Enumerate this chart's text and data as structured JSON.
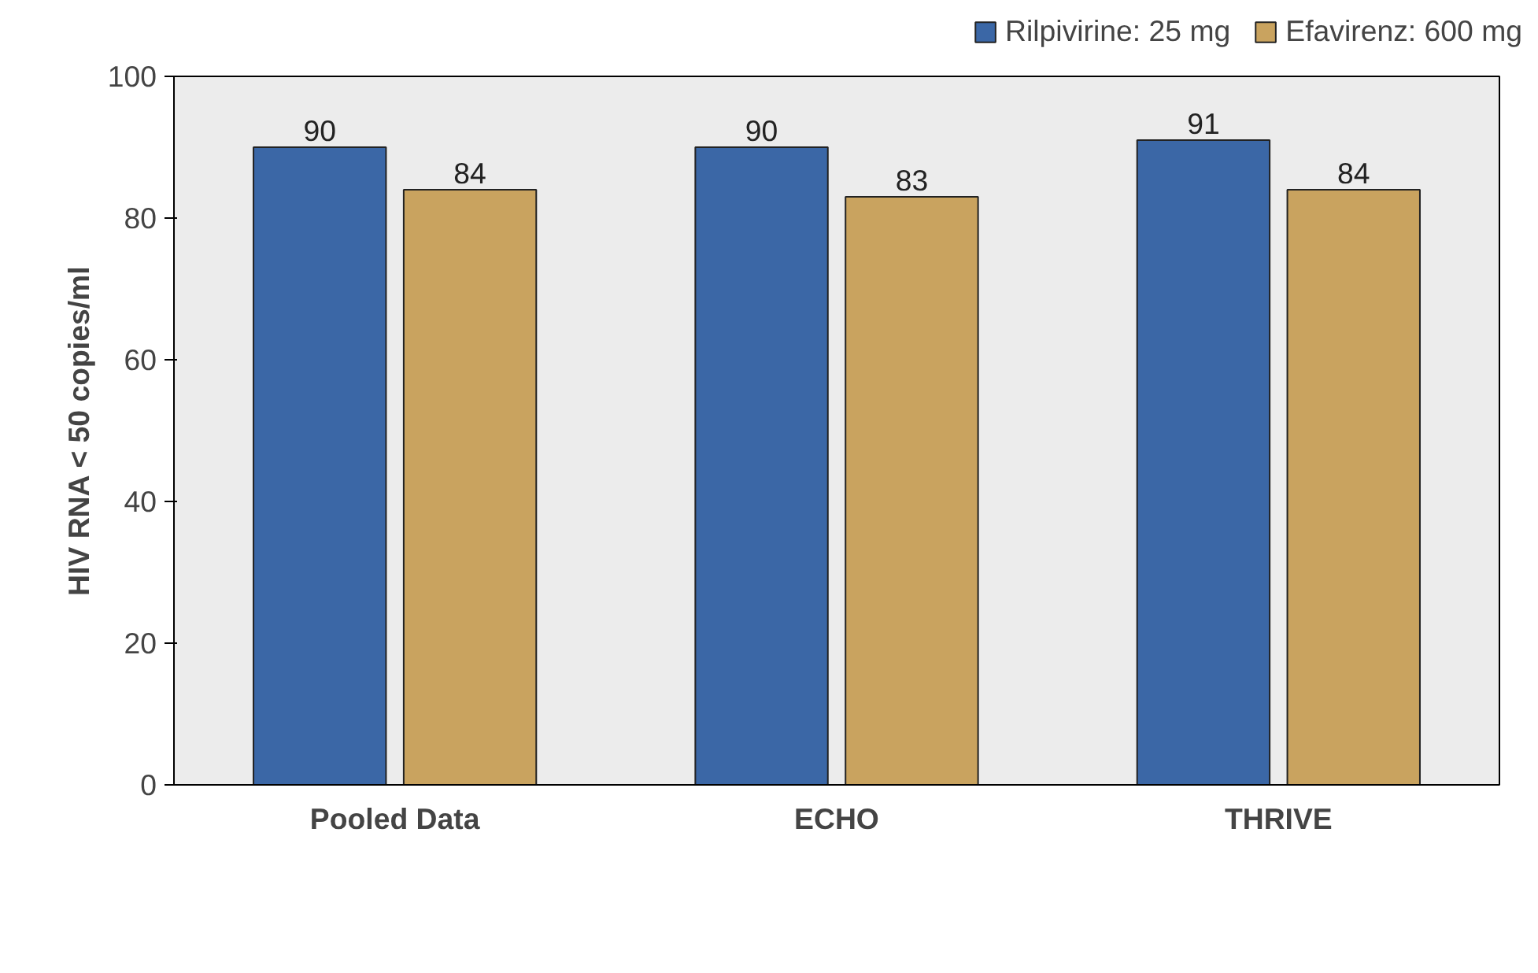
{
  "chart_data": {
    "type": "bar",
    "categories": [
      "Pooled Data",
      "ECHO",
      "THRIVE"
    ],
    "series": [
      {
        "name": "Rilpivirine: 25 mg",
        "color": "#3b67a6",
        "values": [
          90,
          90,
          91
        ]
      },
      {
        "name": "Efavirenz: 600 mg",
        "color": "#c9a35f",
        "values": [
          84,
          83,
          84
        ]
      }
    ],
    "ylabel": "HIV RNA < 50 copies/ml",
    "ylim": [
      0,
      100
    ],
    "yticks": [
      0,
      20,
      40,
      60,
      80,
      100
    ],
    "data_labels": true,
    "legend": "top right"
  }
}
